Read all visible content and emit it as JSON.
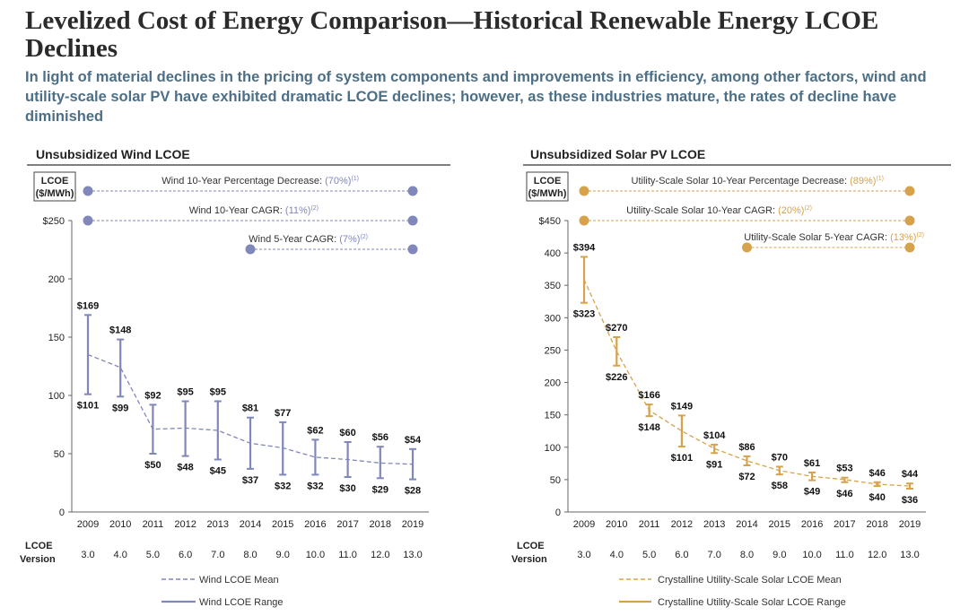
{
  "header": {
    "title": "Levelized Cost of Energy Comparison—Historical Renewable Energy LCOE Declines",
    "subtitle": "In light of material declines in the pricing of system components and improvements in efficiency, among other factors, wind and utility-scale solar PV have exhibited dramatic LCOE declines; however, as these industries mature, the rates of decline have diminished"
  },
  "chart_data": [
    {
      "type": "line",
      "title": "Unsubsidized Wind LCOE",
      "ylabel_line1": "LCOE",
      "ylabel_line2": "($/MWh)",
      "color": "#8087ba",
      "ylim": [
        0,
        250
      ],
      "yticks": [
        0,
        50,
        100,
        150,
        200,
        250
      ],
      "ytick_labels": [
        "0",
        "50",
        "100",
        "150",
        "200",
        "$250"
      ],
      "x": [
        "2009",
        "2010",
        "2011",
        "2012",
        "2013",
        "2014",
        "2015",
        "2016",
        "2017",
        "2018",
        "2019"
      ],
      "version_label_line1": "LCOE",
      "version_label_line2": "Version",
      "versions": [
        "3.0",
        "4.0",
        "5.0",
        "6.0",
        "7.0",
        "8.0",
        "9.0",
        "10.0",
        "11.0",
        "12.0",
        "13.0"
      ],
      "high": [
        169,
        148,
        92,
        95,
        95,
        81,
        77,
        62,
        60,
        56,
        54
      ],
      "low": [
        101,
        99,
        50,
        48,
        45,
        37,
        32,
        32,
        30,
        29,
        28
      ],
      "high_labels": [
        "$169",
        "$148",
        "$92",
        "$95",
        "$95",
        "$81",
        "$77",
        "$62",
        "$60",
        "$56",
        "$54"
      ],
      "low_labels": [
        "$101",
        "$99",
        "$50",
        "$48",
        "$45",
        "$37",
        "$32",
        "$32",
        "$30",
        "$29",
        "$28"
      ],
      "mean": [
        135,
        124,
        71,
        72,
        70,
        59,
        55,
        47,
        45,
        42,
        41
      ],
      "annotations": [
        {
          "text": "Wind 10-Year Percentage Decrease: ",
          "value": "(70%)",
          "note": "(1)",
          "from": "2009",
          "to": "2019"
        },
        {
          "text": "Wind 10-Year CAGR: ",
          "value": "(11%)",
          "note": "(2)",
          "from": "2009",
          "to": "2019"
        },
        {
          "text": "Wind 5-Year CAGR: ",
          "value": "(7%)",
          "note": "(2)",
          "from": "2014",
          "to": "2019"
        }
      ],
      "legend": [
        "Wind LCOE Mean",
        "Wind LCOE Range"
      ]
    },
    {
      "type": "line",
      "title": "Unsubsidized Solar PV LCOE",
      "ylabel_line1": "LCOE",
      "ylabel_line2": "($/MWh)",
      "color": "#d6a24c",
      "ylim": [
        0,
        450
      ],
      "yticks": [
        0,
        50,
        100,
        150,
        200,
        250,
        300,
        350,
        400,
        450
      ],
      "ytick_labels": [
        "0",
        "50",
        "100",
        "150",
        "200",
        "250",
        "300",
        "350",
        "400",
        "$450"
      ],
      "x": [
        "2009",
        "2010",
        "2011",
        "2012",
        "2013",
        "2014",
        "2015",
        "2016",
        "2017",
        "2018",
        "2019"
      ],
      "version_label_line1": "LCOE",
      "version_label_line2": "Version",
      "versions": [
        "3.0",
        "4.0",
        "5.0",
        "6.0",
        "7.0",
        "8.0",
        "9.0",
        "10.0",
        "11.0",
        "12.0",
        "13.0"
      ],
      "high": [
        394,
        270,
        166,
        149,
        104,
        86,
        70,
        61,
        53,
        46,
        44
      ],
      "low": [
        323,
        226,
        148,
        101,
        91,
        72,
        58,
        49,
        46,
        40,
        36
      ],
      "high_labels": [
        "$394",
        "$270",
        "$166",
        "$149",
        "$104",
        "$86",
        "$70",
        "$61",
        "$53",
        "$46",
        "$44"
      ],
      "low_labels": [
        "$323",
        "$226",
        "$148",
        "$101",
        "$91",
        "$72",
        "$58",
        "$49",
        "$46",
        "$40",
        "$36"
      ],
      "mean": [
        359,
        248,
        157,
        125,
        98,
        79,
        64,
        55,
        50,
        43,
        40
      ],
      "annotations": [
        {
          "text": "Utility-Scale Solar 10-Year Percentage Decrease: ",
          "value": "(89%)",
          "note": "(1)",
          "from": "2009",
          "to": "2019"
        },
        {
          "text": "Utility-Scale Solar 10-Year CAGR: ",
          "value": "(20%)",
          "note": "(2)",
          "from": "2009",
          "to": "2019"
        },
        {
          "text": "Utility-Scale Solar 5-Year CAGR: ",
          "value": "(13%)",
          "note": "(2)",
          "from": "2014",
          "to": "2019"
        }
      ],
      "legend": [
        "Crystalline Utility-Scale Solar LCOE Mean",
        "Crystalline Utility-Scale Solar LCOE Range"
      ]
    }
  ]
}
